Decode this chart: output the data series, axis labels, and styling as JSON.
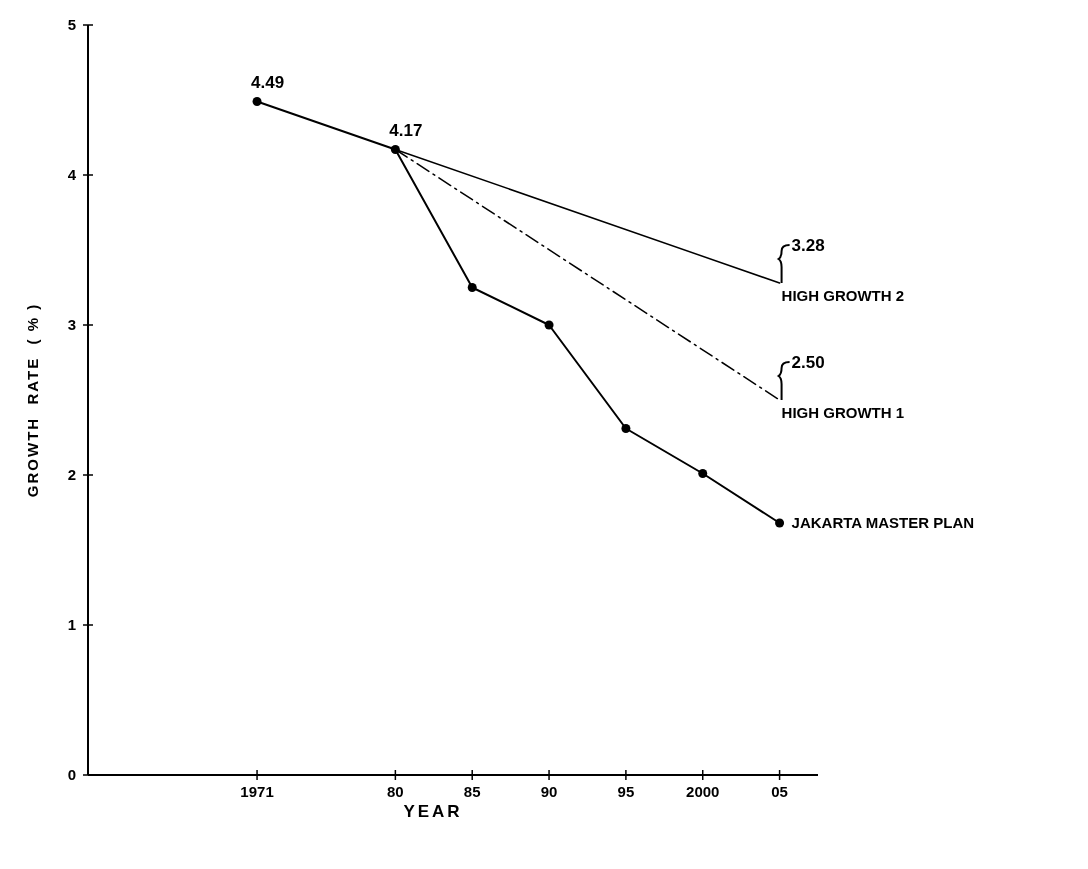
{
  "chart_data": {
    "type": "line",
    "xlabel": "YEAR",
    "ylabel": "GROWTH  RATE  ( % )",
    "xlim": [
      1960,
      2007.5
    ],
    "ylim": [
      0,
      5
    ],
    "xticks": [
      {
        "value": 1971,
        "label": "1971"
      },
      {
        "value": 1980,
        "label": "80"
      },
      {
        "value": 1985,
        "label": "85"
      },
      {
        "value": 1990,
        "label": "90"
      },
      {
        "value": 1995,
        "label": "95"
      },
      {
        "value": 2000,
        "label": "2000"
      },
      {
        "value": 2005,
        "label": "05"
      }
    ],
    "yticks": [
      0,
      1,
      2,
      3,
      4,
      5
    ],
    "grid": false,
    "series": [
      {
        "name": "JAKARTA MASTER PLAN",
        "color": "#000000",
        "x": [
          1971,
          1980,
          1985,
          1990,
          1995,
          2000,
          2005
        ],
        "values": [
          4.49,
          4.17,
          3.25,
          3.0,
          2.31,
          2.01,
          1.68
        ],
        "marker": "circle",
        "line_style": "solid"
      },
      {
        "name": "HIGH GROWTH 2",
        "color": "#000000",
        "x": [
          1980,
          2005
        ],
        "values": [
          4.17,
          3.28
        ],
        "marker": "none",
        "line_style": "solid"
      },
      {
        "name": "HIGH GROWTH 1",
        "color": "#000000",
        "x": [
          1980,
          2005
        ],
        "values": [
          4.17,
          2.5
        ],
        "marker": "none",
        "line_style": "dashed"
      }
    ],
    "annotations": [
      {
        "text": "4.49",
        "x": 1971,
        "y": 4.49
      },
      {
        "text": "4.17",
        "x": 1980,
        "y": 4.17
      },
      {
        "text": "3.28",
        "x": 2005,
        "y": 3.28
      },
      {
        "text": "2.50",
        "x": 2005,
        "y": 2.5
      }
    ]
  }
}
